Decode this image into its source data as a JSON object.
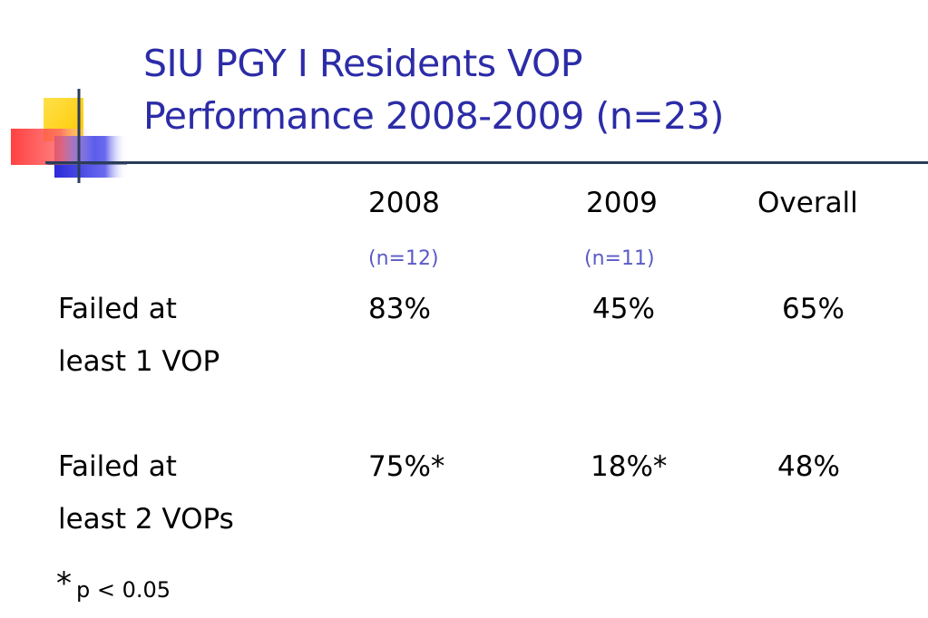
{
  "slide": {
    "title_line1": "SIU PGY I Residents VOP",
    "title_line2": "Performance  2008-2009 (n=23)"
  },
  "columns": [
    {
      "heading": "2008",
      "subheading": "(n=12)"
    },
    {
      "heading": "2009",
      "subheading": "(n=11)"
    },
    {
      "heading": "Overall",
      "subheading": ""
    }
  ],
  "rows": [
    {
      "label_line1": "Failed at",
      "label_line2": "least 1 VOP",
      "values": [
        "83%",
        "45%",
        "65%"
      ]
    },
    {
      "label_line1": "Failed at",
      "label_line2": "least 2 VOPs",
      "values": [
        "75%*",
        "18%*",
        "48%"
      ]
    }
  ],
  "footnote": {
    "star": "*",
    "text": "p < 0.05"
  },
  "colors": {
    "title": "#2c2ca8",
    "subheading": "#5a5ac8",
    "accent_yellow": "#ffd400",
    "accent_red": "#ff3030",
    "accent_blue": "#3030e0"
  }
}
